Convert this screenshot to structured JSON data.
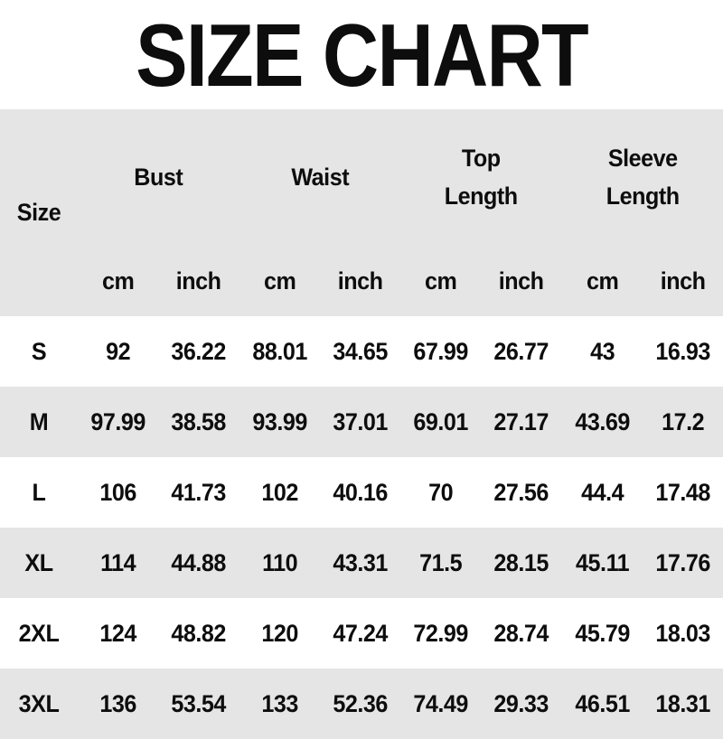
{
  "colors": {
    "background": "#ffffff",
    "header_bg": "#e5e5e5",
    "row_alt_bg": "#e5e5e5",
    "row_bg": "#ffffff",
    "text": "#0d0d0d"
  },
  "chart_data": {
    "type": "table",
    "title": "SIZE CHART",
    "row_header": "Size",
    "column_groups": [
      {
        "label": "Bust",
        "span": 2
      },
      {
        "label": "Waist",
        "span": 2
      },
      {
        "label": "Top Length",
        "span": 2
      },
      {
        "label": "Sleeve Length",
        "span": 2
      }
    ],
    "unit_headers": [
      "cm",
      "inch",
      "cm",
      "inch",
      "cm",
      "inch",
      "cm",
      "inch"
    ],
    "rows": [
      {
        "size": "S",
        "values": [
          "92",
          "36.22",
          "88.01",
          "34.65",
          "67.99",
          "26.77",
          "43",
          "16.93"
        ]
      },
      {
        "size": "M",
        "values": [
          "97.99",
          "38.58",
          "93.99",
          "37.01",
          "69.01",
          "27.17",
          "43.69",
          "17.2"
        ]
      },
      {
        "size": "L",
        "values": [
          "106",
          "41.73",
          "102",
          "40.16",
          "70",
          "27.56",
          "44.4",
          "17.48"
        ]
      },
      {
        "size": "XL",
        "values": [
          "114",
          "44.88",
          "110",
          "43.31",
          "71.5",
          "28.15",
          "45.11",
          "17.76"
        ]
      },
      {
        "size": "2XL",
        "values": [
          "124",
          "48.82",
          "120",
          "47.24",
          "72.99",
          "28.74",
          "45.79",
          "18.03"
        ]
      },
      {
        "size": "3XL",
        "values": [
          "136",
          "53.54",
          "133",
          "52.36",
          "74.49",
          "29.33",
          "46.51",
          "18.31"
        ]
      }
    ]
  }
}
